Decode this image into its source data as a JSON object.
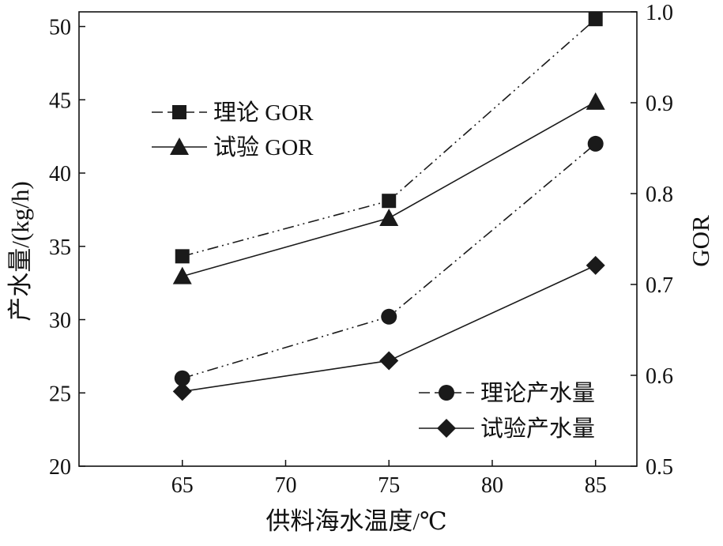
{
  "chart_data": {
    "type": "line",
    "x": [
      65,
      75,
      85
    ],
    "xlabel": "供料海水温度/℃",
    "ylabel_left": "产水量/(kg/h)",
    "ylabel_right": "GOR",
    "xlim": [
      60,
      87
    ],
    "ylim_left": [
      20,
      51
    ],
    "ylim_right": [
      0.5,
      1.0
    ],
    "xticks": [
      65,
      70,
      75,
      80,
      85
    ],
    "yticks_left": [
      20,
      25,
      30,
      35,
      40,
      45,
      50
    ],
    "yticks_right": [
      "0.5",
      "0.6",
      "0.7",
      "0.8",
      "0.9",
      "1.0"
    ],
    "grid": false,
    "legends": [
      {
        "placement": "upper-left",
        "entries": [
          "理论 GOR",
          "试验 GOR"
        ]
      },
      {
        "placement": "lower-right",
        "entries": [
          "理论产水量",
          "试验产水量"
        ]
      }
    ],
    "series": [
      {
        "name": "理论 GOR",
        "axis": "right",
        "marker": "square",
        "line": "dash-dot-dot",
        "values": [
          0.731,
          0.792,
          0.992
        ]
      },
      {
        "name": "试验 GOR",
        "axis": "right",
        "marker": "triangle",
        "line": "solid",
        "values": [
          0.709,
          0.773,
          0.901
        ]
      },
      {
        "name": "理论产水量",
        "axis": "left",
        "marker": "circle",
        "line": "dash-dot-dot",
        "values": [
          26.0,
          30.2,
          42.0
        ]
      },
      {
        "name": "试验产水量",
        "axis": "left",
        "marker": "diamond",
        "line": "solid",
        "values": [
          25.1,
          27.2,
          33.7
        ]
      }
    ]
  }
}
